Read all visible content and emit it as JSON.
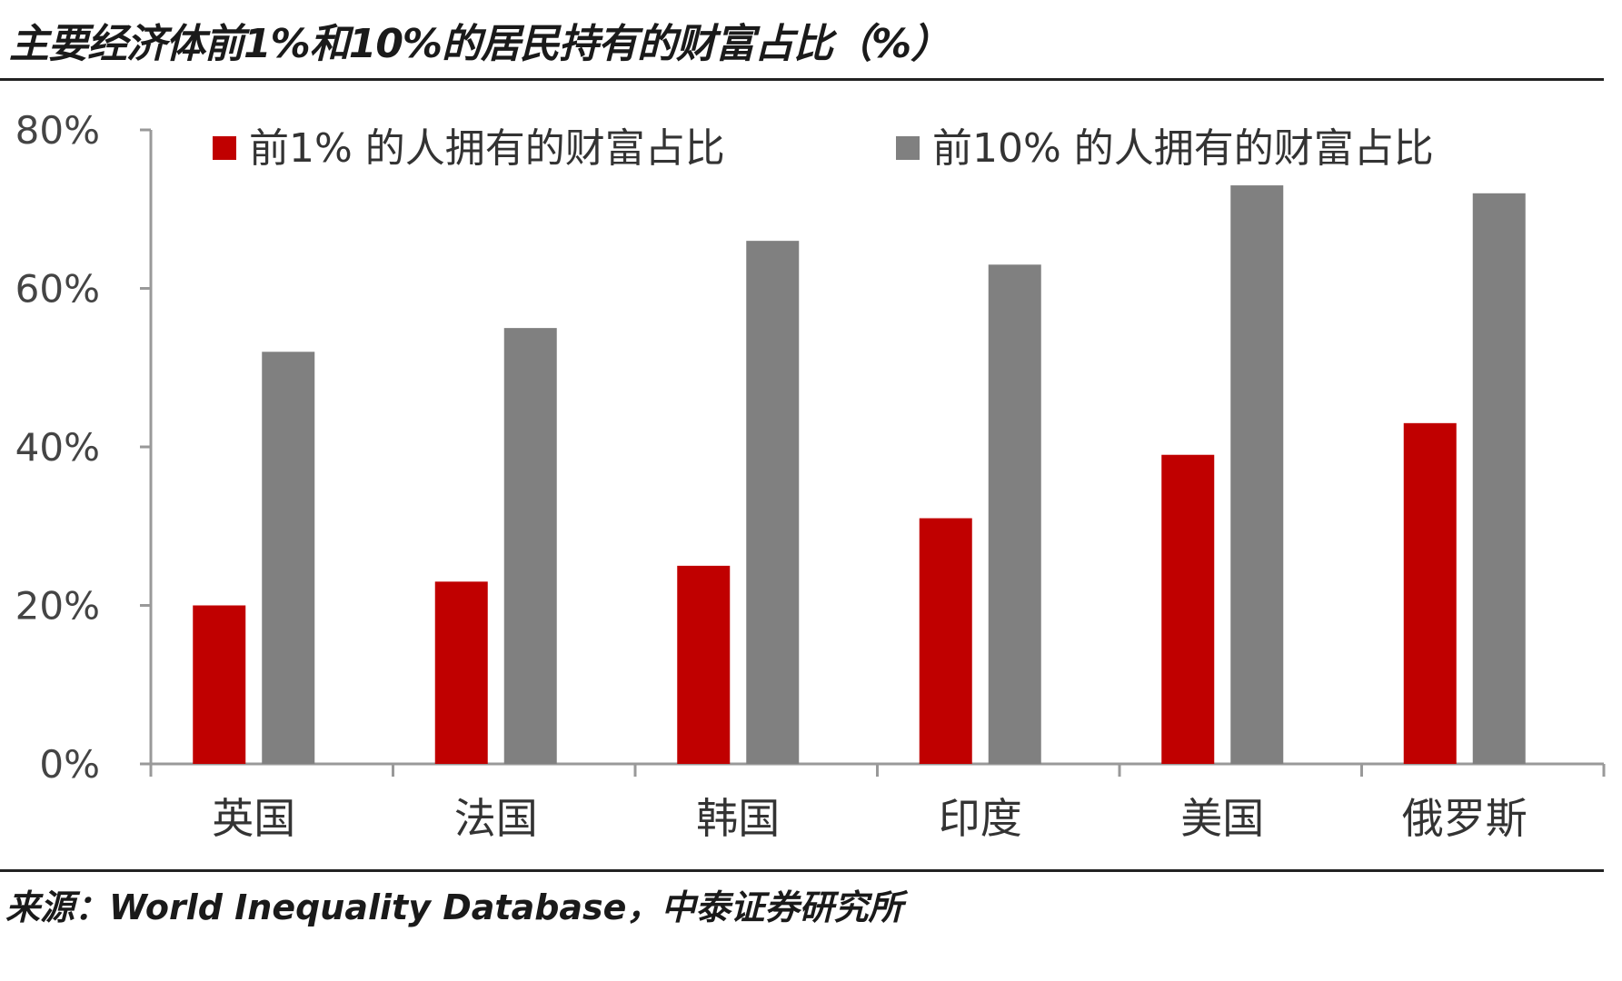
{
  "title": "主要经济体前1%和10%的居民持有的财富占比（%）",
  "source": "来源：World Inequality Database，中泰证券研究所",
  "colors": {
    "series1": "#c00000",
    "series2": "#808080",
    "axis": "#999999"
  },
  "chart_data": {
    "type": "bar",
    "categories": [
      "英国",
      "法国",
      "韩国",
      "印度",
      "美国",
      "俄罗斯"
    ],
    "series": [
      {
        "name": "前1% 的人拥有的财富占比",
        "values": [
          20,
          23,
          25,
          31,
          39,
          43
        ]
      },
      {
        "name": "前10% 的人拥有的财富占比",
        "values": [
          52,
          55,
          66,
          63,
          73,
          72
        ]
      }
    ],
    "ylim": [
      0,
      80
    ],
    "yticks": [
      "0%",
      "20%",
      "40%",
      "60%",
      "80%"
    ],
    "ytick_values": [
      0,
      20,
      40,
      60,
      80
    ],
    "legend_position": "top",
    "grid": false
  }
}
